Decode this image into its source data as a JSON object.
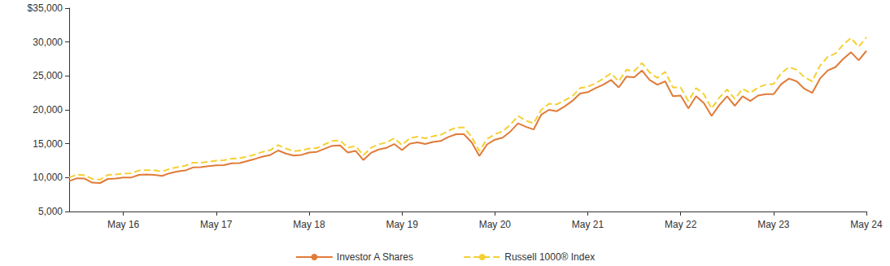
{
  "chart_data": {
    "type": "line",
    "categories": [
      null,
      null,
      null,
      null,
      null,
      null,
      null,
      "May 16",
      null,
      null,
      null,
      null,
      null,
      null,
      null,
      null,
      null,
      null,
      null,
      "May 17",
      null,
      null,
      null,
      null,
      null,
      null,
      null,
      null,
      null,
      null,
      null,
      "May 18",
      null,
      null,
      null,
      null,
      null,
      null,
      null,
      null,
      null,
      null,
      null,
      "May 19",
      null,
      null,
      null,
      null,
      null,
      null,
      null,
      null,
      null,
      null,
      null,
      "May 20",
      null,
      null,
      null,
      null,
      null,
      null,
      null,
      null,
      null,
      null,
      null,
      "May 21",
      null,
      null,
      null,
      null,
      null,
      null,
      null,
      null,
      null,
      null,
      null,
      "May 22",
      null,
      null,
      null,
      null,
      null,
      null,
      null,
      null,
      null,
      null,
      null,
      "May 23",
      null,
      null,
      null,
      null,
      null,
      null,
      null,
      null,
      null,
      null,
      null,
      "May 24"
    ],
    "series": [
      {
        "name": "Investor A Shares",
        "color": "#e07b39",
        "line_style": "solid",
        "values": [
          9480,
          9900,
          9850,
          9250,
          9200,
          9800,
          9850,
          10000,
          10000,
          10400,
          10450,
          10400,
          10250,
          10650,
          10900,
          11050,
          11500,
          11550,
          11700,
          11800,
          11850,
          12100,
          12150,
          12450,
          12750,
          13100,
          13350,
          14000,
          13550,
          13250,
          13350,
          13700,
          13800,
          14250,
          14700,
          14750,
          13700,
          13950,
          12600,
          13650,
          14150,
          14400,
          14950,
          14050,
          15000,
          15200,
          14950,
          15250,
          15400,
          16000,
          16400,
          16400,
          15200,
          13200,
          14900,
          15600,
          15900,
          16800,
          18000,
          17500,
          17100,
          19300,
          20000,
          19800,
          20500,
          21300,
          22400,
          22600,
          23200,
          23700,
          24400,
          23300,
          24900,
          24800,
          25800,
          24400,
          23700,
          24200,
          22000,
          22100,
          20200,
          22000,
          21000,
          19100,
          20700,
          22000,
          20600,
          22000,
          21300,
          22100,
          22300,
          22300,
          23800,
          24600,
          24200,
          23100,
          22500,
          24600,
          25800,
          26300,
          27500,
          28500,
          27300,
          28700
        ]
      },
      {
        "name": "Russell 1000® Index",
        "color": "#f5d033",
        "line_style": "dashed",
        "values": [
          10000,
          10450,
          10350,
          9800,
          9700,
          10400,
          10450,
          10600,
          10650,
          11050,
          11100,
          11100,
          10900,
          11300,
          11550,
          11750,
          12200,
          12200,
          12350,
          12500,
          12550,
          12800,
          12850,
          13100,
          13400,
          13800,
          14050,
          14800,
          14300,
          13900,
          14000,
          14300,
          14350,
          14900,
          15400,
          15500,
          14400,
          14650,
          13300,
          14400,
          14900,
          15200,
          15800,
          14800,
          15800,
          16050,
          15800,
          16100,
          16300,
          16900,
          17400,
          17400,
          16000,
          13900,
          15700,
          16400,
          16800,
          17800,
          19100,
          18400,
          18000,
          20000,
          20900,
          20800,
          21400,
          22000,
          23200,
          23400,
          23900,
          24600,
          25400,
          24200,
          25900,
          25700,
          26900,
          25500,
          24700,
          25600,
          23300,
          23300,
          21300,
          23200,
          22300,
          20200,
          21800,
          23000,
          21600,
          23100,
          22500,
          23300,
          23700,
          23800,
          25400,
          26300,
          25900,
          24800,
          24200,
          26500,
          27800,
          28300,
          29600,
          30600,
          29300,
          30700
        ]
      }
    ],
    "ylim": [
      5000,
      35000
    ],
    "yticks": [
      {
        "value": 5000,
        "label": "5,000"
      },
      {
        "value": 10000,
        "label": "10,000"
      },
      {
        "value": 15000,
        "label": "15,000"
      },
      {
        "value": 20000,
        "label": "20,000"
      },
      {
        "value": 25000,
        "label": "25,000"
      },
      {
        "value": 30000,
        "label": "30,000"
      },
      {
        "value": 35000,
        "label": "$35,000"
      }
    ],
    "grid": false,
    "legend": "bottom"
  }
}
